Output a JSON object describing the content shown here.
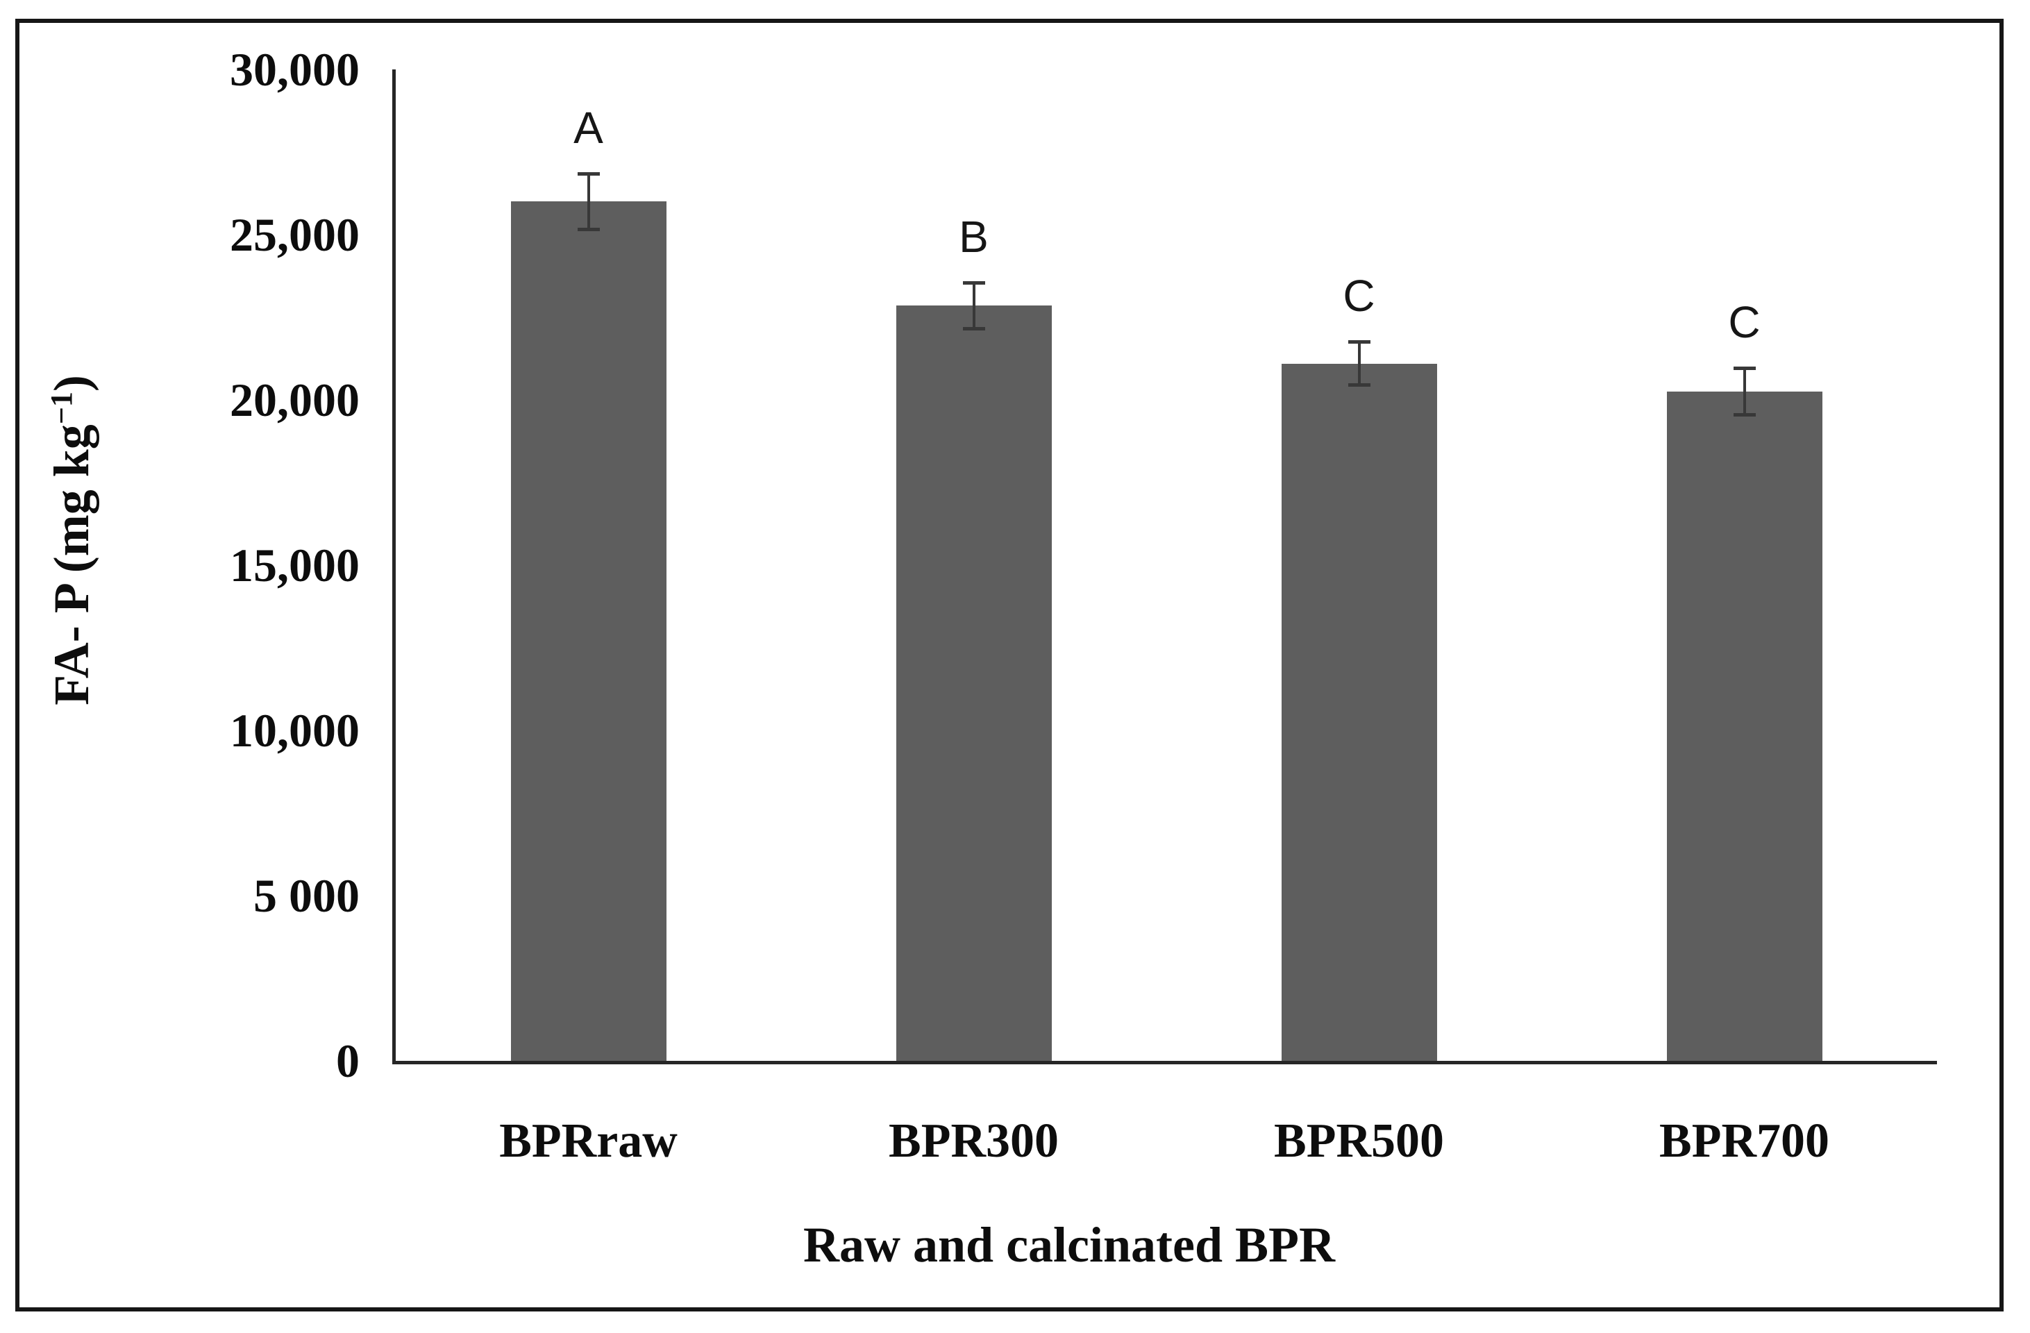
{
  "chart_data": {
    "type": "bar",
    "title": "",
    "xlabel": "Raw and calcinated BPR",
    "ylabel": "FA- P (mg kg⁻¹)",
    "ylabel_parts": {
      "main": "FA- P (mg kg",
      "sup": "−1",
      "close": ")"
    },
    "ylim": [
      0,
      30000
    ],
    "grid": false,
    "legend": "none",
    "bar_color": "#5E5E5E",
    "error_bar_color": "#383838",
    "axis_color": "#262626",
    "categories": [
      "BPRraw",
      "BPR300",
      "BPR500",
      "BPR700"
    ],
    "values": [
      26000,
      22850,
      21100,
      20250
    ],
    "errors": [
      900,
      750,
      700,
      750
    ],
    "sig_letters": [
      "A",
      "B",
      "C",
      "C"
    ],
    "yticks": [
      {
        "value": 0,
        "label": "0"
      },
      {
        "value": 5000,
        "label": "5 000"
      },
      {
        "value": 10000,
        "label": "10,000"
      },
      {
        "value": 15000,
        "label": "15,000"
      },
      {
        "value": 20000,
        "label": "20,000"
      },
      {
        "value": 25000,
        "label": "25,000"
      },
      {
        "value": 30000,
        "label": "30,000"
      }
    ]
  }
}
